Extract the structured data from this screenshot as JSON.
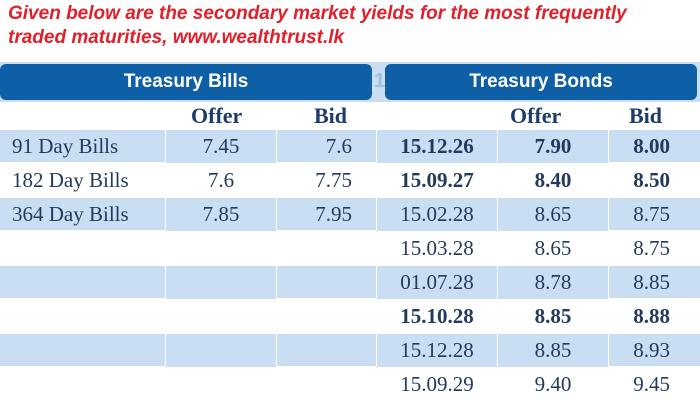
{
  "caption": {
    "line1": "Given below are the secondary market yields for the most frequently",
    "line2": "traded maturities, www.wealthtrust.lk"
  },
  "bills": {
    "title": "Treasury Bills",
    "offer_label": "Offer",
    "bid_label": "Bid",
    "rows": [
      {
        "name": "91 Day Bills",
        "offer": "7.45",
        "bid": "7.6"
      },
      {
        "name": "182 Day Bills",
        "offer": "7.6",
        "bid": "7.75"
      },
      {
        "name": "364 Day Bills",
        "offer": "7.85",
        "bid": "7.95"
      }
    ]
  },
  "bonds": {
    "title": "Treasury Bonds",
    "offer_label": "Offer",
    "bid_label": "Bid",
    "rows": [
      {
        "maturity": "15.12.26",
        "offer": "7.90",
        "bid": "8.00",
        "bold": true
      },
      {
        "maturity": "15.09.27",
        "offer": "8.40",
        "bid": "8.50",
        "bold": true
      },
      {
        "maturity": "15.02.28",
        "offer": "8.65",
        "bid": "8.75",
        "bold": false
      },
      {
        "maturity": "15.03.28",
        "offer": "8.65",
        "bid": "8.75",
        "bold": false
      },
      {
        "maturity": "01.07.28",
        "offer": "8.78",
        "bid": "8.85",
        "bold": false
      },
      {
        "maturity": "15.10.28",
        "offer": "8.85",
        "bid": "8.88",
        "bold": true
      },
      {
        "maturity": "15.12.28",
        "offer": "8.85",
        "bid": "8.93",
        "bold": false
      },
      {
        "maturity": "15.09.29",
        "offer": "9.40",
        "bid": "9.45",
        "bold": false
      }
    ]
  },
  "colors": {
    "header_blue": "#0f5fa6",
    "row_shade": "#c9def2",
    "caption_red": "#e0202a"
  }
}
